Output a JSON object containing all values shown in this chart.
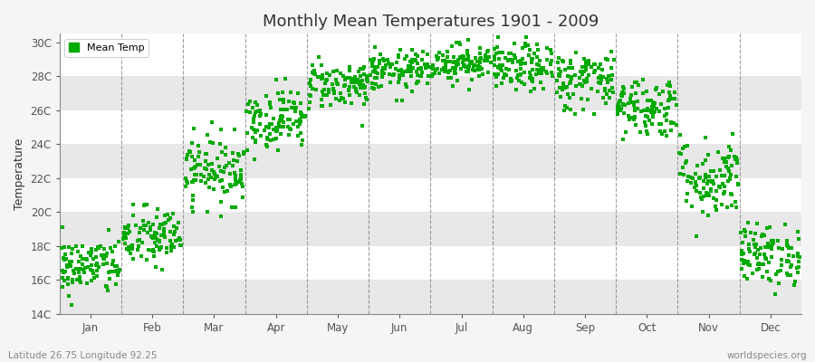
{
  "title": "Monthly Mean Temperatures 1901 - 2009",
  "ylabel": "Temperature",
  "xlabel": "",
  "subtitle_left": "Latitude 26.75 Longitude 92.25",
  "subtitle_right": "worldspecies.org",
  "legend_label": "Mean Temp",
  "dot_color": "#00aa00",
  "background_color": "#f5f5f5",
  "plot_bg_color": "#ffffff",
  "ylim": [
    14,
    30.5
  ],
  "ytick_labels": [
    "14C",
    "16C",
    "18C",
    "20C",
    "22C",
    "24C",
    "26C",
    "28C",
    "30C"
  ],
  "ytick_values": [
    14,
    16,
    18,
    20,
    22,
    24,
    26,
    28,
    30
  ],
  "month_names": [
    "Jan",
    "Feb",
    "Mar",
    "Apr",
    "May",
    "Jun",
    "Jul",
    "Aug",
    "Sep",
    "Oct",
    "Nov",
    "Dec"
  ],
  "month_means": [
    16.8,
    18.5,
    22.5,
    25.5,
    27.5,
    28.3,
    28.8,
    28.5,
    27.8,
    26.2,
    22.0,
    17.5
  ],
  "month_stds": [
    0.85,
    0.9,
    1.0,
    0.9,
    0.7,
    0.6,
    0.55,
    0.7,
    0.9,
    0.9,
    1.2,
    0.9
  ],
  "n_years": 109,
  "dot_size": 6,
  "dot_marker": "s",
  "vline_color": "#777777",
  "axis_color": "#888888",
  "tick_color": "#555555",
  "font_color": "#333333",
  "title_fontsize": 13,
  "label_fontsize": 9,
  "tick_fontsize": 8.5,
  "legend_fontsize": 8,
  "hband_color": "#e8e8e8",
  "hband_alpha": 1.0
}
